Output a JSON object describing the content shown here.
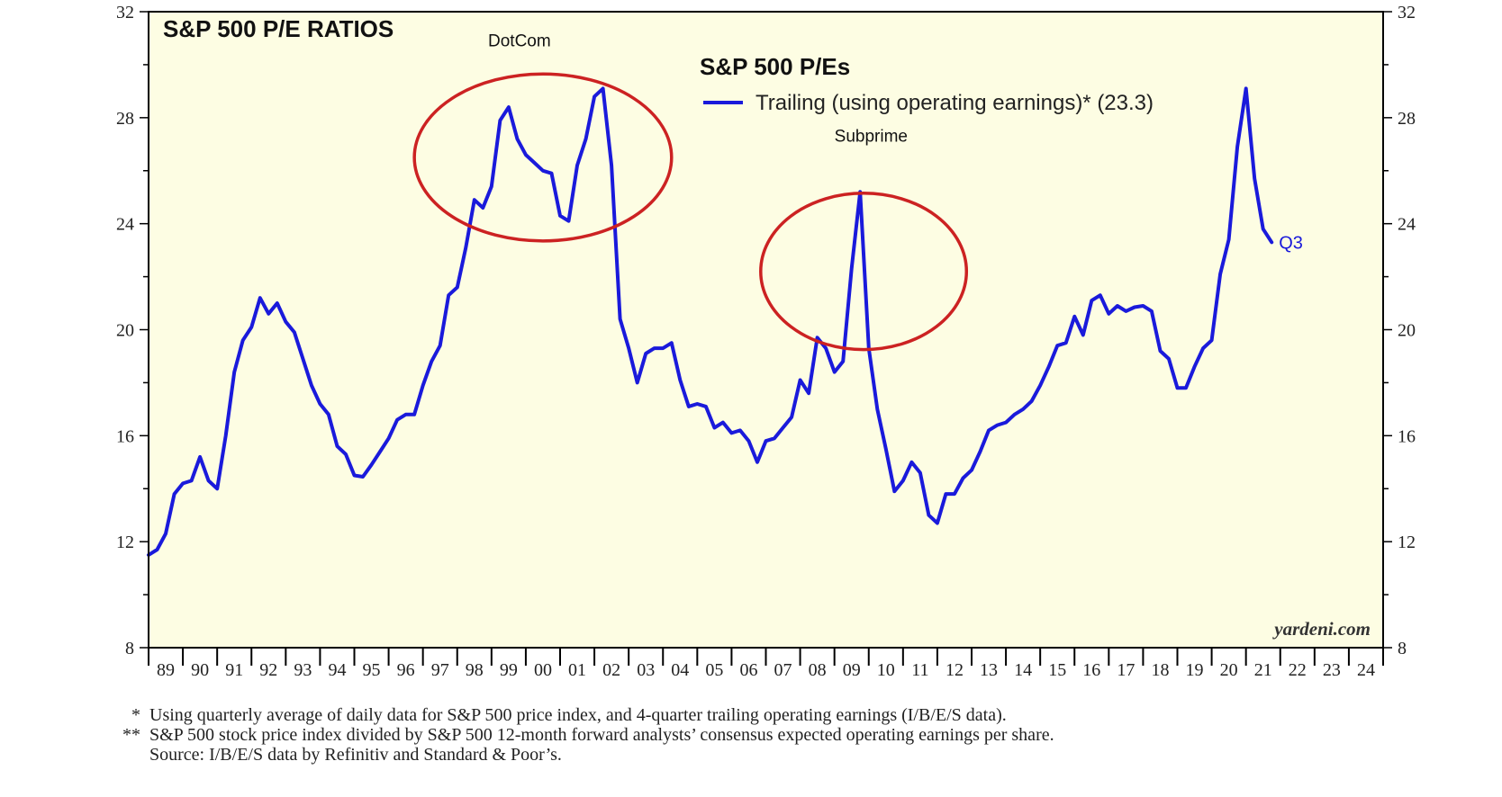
{
  "chart_data": {
    "type": "line",
    "title": "S&P 500 P/E RATIOS",
    "legend": {
      "title": "S&P 500 P/Es",
      "entries": [
        {
          "label": "Trailing (using operating earnings)* (23.3)",
          "color": "#1a1adb"
        }
      ],
      "placement": "top-center"
    },
    "ylim": [
      8,
      32
    ],
    "y_ticks": [
      "8",
      "12",
      "16",
      "20",
      "24",
      "28",
      "32"
    ],
    "xlim": [
      1989,
      2025
    ],
    "x_tick_labels": [
      "89",
      "90",
      "91",
      "92",
      "93",
      "94",
      "95",
      "96",
      "97",
      "98",
      "99",
      "00",
      "01",
      "02",
      "03",
      "04",
      "05",
      "06",
      "07",
      "08",
      "09",
      "10",
      "11",
      "12",
      "13",
      "14",
      "15",
      "16",
      "17",
      "18",
      "19",
      "20",
      "21",
      "22",
      "23",
      "24"
    ],
    "grid": false,
    "background_color": "#fdfde3",
    "series": [
      {
        "color": "#1a1adb",
        "end_label": "Q3",
        "points": [
          [
            1989.0,
            11.5
          ],
          [
            1989.25,
            11.7
          ],
          [
            1989.5,
            12.3
          ],
          [
            1989.75,
            13.8
          ],
          [
            1990.0,
            14.2
          ],
          [
            1990.25,
            14.3
          ],
          [
            1990.5,
            15.2
          ],
          [
            1990.75,
            14.3
          ],
          [
            1991.0,
            14.0
          ],
          [
            1991.25,
            16.0
          ],
          [
            1991.5,
            18.4
          ],
          [
            1991.75,
            19.6
          ],
          [
            1992.0,
            20.1
          ],
          [
            1992.25,
            21.2
          ],
          [
            1992.5,
            20.6
          ],
          [
            1992.75,
            21.0
          ],
          [
            1993.0,
            20.3
          ],
          [
            1993.25,
            19.9
          ],
          [
            1993.5,
            18.9
          ],
          [
            1993.75,
            17.9
          ],
          [
            1994.0,
            17.2
          ],
          [
            1994.25,
            16.8
          ],
          [
            1994.5,
            15.6
          ],
          [
            1994.75,
            15.3
          ],
          [
            1995.0,
            14.5
          ],
          [
            1995.25,
            14.45
          ],
          [
            1995.5,
            14.9
          ],
          [
            1995.75,
            15.4
          ],
          [
            1996.0,
            15.9
          ],
          [
            1996.25,
            16.6
          ],
          [
            1996.5,
            16.8
          ],
          [
            1996.75,
            16.8
          ],
          [
            1997.0,
            17.9
          ],
          [
            1997.25,
            18.8
          ],
          [
            1997.5,
            19.4
          ],
          [
            1997.75,
            21.3
          ],
          [
            1998.0,
            21.6
          ],
          [
            1998.25,
            23.1
          ],
          [
            1998.5,
            24.9
          ],
          [
            1998.75,
            24.6
          ],
          [
            1999.0,
            25.4
          ],
          [
            1999.25,
            27.9
          ],
          [
            1999.5,
            28.4
          ],
          [
            1999.75,
            27.2
          ],
          [
            2000.0,
            26.6
          ],
          [
            2000.25,
            26.3
          ],
          [
            2000.5,
            26.0
          ],
          [
            2000.75,
            25.9
          ],
          [
            2001.0,
            24.3
          ],
          [
            2001.25,
            24.1
          ],
          [
            2001.5,
            26.2
          ],
          [
            2001.75,
            27.2
          ],
          [
            2002.0,
            28.8
          ],
          [
            2002.25,
            29.1
          ],
          [
            2002.5,
            26.2
          ],
          [
            2002.75,
            20.4
          ],
          [
            2003.0,
            19.3
          ],
          [
            2003.25,
            18.0
          ],
          [
            2003.5,
            19.1
          ],
          [
            2003.75,
            19.3
          ],
          [
            2004.0,
            19.3
          ],
          [
            2004.25,
            19.5
          ],
          [
            2004.5,
            18.1
          ],
          [
            2004.75,
            17.1
          ],
          [
            2005.0,
            17.2
          ],
          [
            2005.25,
            17.1
          ],
          [
            2005.5,
            16.3
          ],
          [
            2005.75,
            16.5
          ],
          [
            2006.0,
            16.1
          ],
          [
            2006.25,
            16.2
          ],
          [
            2006.5,
            15.8
          ],
          [
            2006.75,
            15.0
          ],
          [
            2007.0,
            15.8
          ],
          [
            2007.25,
            15.9
          ],
          [
            2007.5,
            16.3
          ],
          [
            2007.75,
            16.7
          ],
          [
            2008.0,
            18.1
          ],
          [
            2008.25,
            17.6
          ],
          [
            2008.5,
            19.7
          ],
          [
            2008.75,
            19.3
          ],
          [
            2009.0,
            18.4
          ],
          [
            2009.25,
            18.8
          ],
          [
            2009.5,
            22.3
          ],
          [
            2009.75,
            25.2
          ],
          [
            2010.0,
            19.3
          ],
          [
            2010.25,
            17.0
          ],
          [
            2010.5,
            15.5
          ],
          [
            2010.75,
            13.9
          ],
          [
            2011.0,
            14.3
          ],
          [
            2011.25,
            15.0
          ],
          [
            2011.5,
            14.6
          ],
          [
            2011.75,
            13.0
          ],
          [
            2012.0,
            12.7
          ],
          [
            2012.25,
            13.8
          ],
          [
            2012.5,
            13.8
          ],
          [
            2012.75,
            14.4
          ],
          [
            2013.0,
            14.7
          ],
          [
            2013.25,
            15.4
          ],
          [
            2013.5,
            16.2
          ],
          [
            2013.75,
            16.4
          ],
          [
            2014.0,
            16.5
          ],
          [
            2014.25,
            16.8
          ],
          [
            2014.5,
            17.0
          ],
          [
            2014.75,
            17.3
          ],
          [
            2015.0,
            17.9
          ],
          [
            2015.25,
            18.6
          ],
          [
            2015.5,
            19.4
          ],
          [
            2015.75,
            19.5
          ],
          [
            2016.0,
            20.5
          ],
          [
            2016.25,
            19.8
          ],
          [
            2016.5,
            21.1
          ],
          [
            2016.75,
            21.3
          ],
          [
            2017.0,
            20.6
          ],
          [
            2017.25,
            20.9
          ],
          [
            2017.5,
            20.7
          ],
          [
            2017.75,
            20.85
          ],
          [
            2018.0,
            20.9
          ],
          [
            2018.25,
            20.7
          ],
          [
            2018.5,
            19.2
          ],
          [
            2018.75,
            18.9
          ],
          [
            2019.0,
            17.8
          ],
          [
            2019.25,
            17.8
          ],
          [
            2019.5,
            18.6
          ],
          [
            2019.75,
            19.3
          ],
          [
            2020.0,
            19.6
          ],
          [
            2020.25,
            22.1
          ],
          [
            2020.5,
            23.4
          ],
          [
            2020.75,
            26.9
          ],
          [
            2021.0,
            29.1
          ],
          [
            2021.25,
            25.7
          ],
          [
            2021.5,
            23.8
          ],
          [
            2021.75,
            23.3
          ]
        ]
      }
    ],
    "annotations": [
      {
        "text": "DotCom",
        "x": 2000.5,
        "y": 26.5,
        "rx": 3.75,
        "ry": 3.15,
        "label_x": 1998.9,
        "label_y": 30.7,
        "shape": "ellipse",
        "color": "#cc2222"
      },
      {
        "text": "Subprime",
        "x": 2009.85,
        "y": 22.2,
        "rx": 3.0,
        "ry": 2.95,
        "label_x": 2009.0,
        "label_y": 27.1,
        "shape": "ellipse",
        "color": "#cc2222"
      }
    ],
    "watermark": "yardeni.com"
  },
  "footnotes": [
    {
      "marker": "*",
      "text": "Using quarterly average of daily data for S&P 500 price index, and 4-quarter trailing operating earnings (I/B/E/S data)."
    },
    {
      "marker": "**",
      "text": "S&P 500 stock price index divided by S&P 500 12-month forward analysts’ consensus expected operating earnings per share."
    },
    {
      "marker": "",
      "text": "Source: I/B/E/S data by Refinitiv and Standard & Poor’s."
    }
  ]
}
